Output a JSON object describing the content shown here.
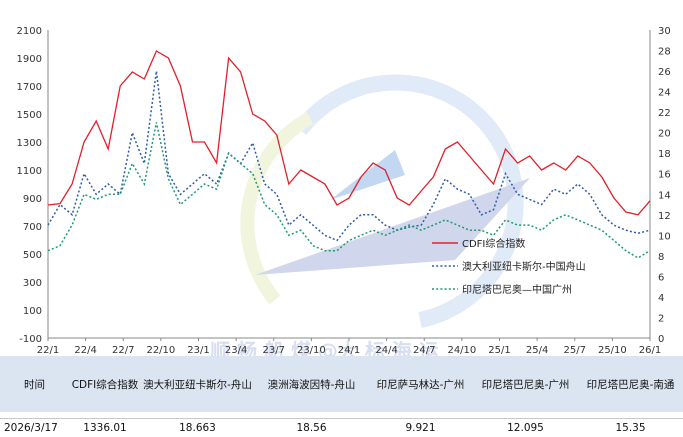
{
  "chart_data": {
    "type": "line",
    "title": "",
    "x_ticks": [
      "22/1",
      "22/4",
      "22/7",
      "22/10",
      "23/1",
      "23/4",
      "23/7",
      "23/10",
      "24/1",
      "24/4",
      "24/7",
      "24/10",
      "25/1",
      "25/4",
      "25/7",
      "25/10",
      "26/1"
    ],
    "y_left": {
      "min": -100,
      "max": 2100,
      "ticks": [
        -100,
        100,
        300,
        500,
        700,
        900,
        1100,
        1300,
        1500,
        1700,
        1900,
        2100
      ]
    },
    "y_right": {
      "min": 0,
      "max": 30,
      "ticks": [
        0,
        2,
        4,
        6,
        8,
        10,
        12,
        14,
        16,
        18,
        20,
        22,
        24,
        26,
        28,
        30
      ]
    },
    "grid": false,
    "legend_position": "lower-right",
    "series": [
      {
        "name": "CDFI综合指数",
        "axis": "left",
        "color": "#e0202a",
        "dash": "solid",
        "x": [
          "2022-01",
          "2022-02",
          "2022-03",
          "2022-04",
          "2022-05",
          "2022-06",
          "2022-07",
          "2022-08",
          "2022-09",
          "2022-10",
          "2022-11",
          "2022-12",
          "2023-01",
          "2023-02",
          "2023-03",
          "2023-04",
          "2023-05",
          "2023-06",
          "2023-07",
          "2023-08",
          "2023-09",
          "2023-10",
          "2023-11",
          "2023-12",
          "2024-01",
          "2024-02",
          "2024-03",
          "2024-04",
          "2024-05",
          "2024-06",
          "2024-07",
          "2024-08",
          "2024-09",
          "2024-10",
          "2024-11",
          "2024-12",
          "2025-01",
          "2025-02",
          "2025-03",
          "2025-04",
          "2025-05",
          "2025-06",
          "2025-07",
          "2025-08",
          "2025-09",
          "2025-10",
          "2025-11",
          "2025-12",
          "2026-01",
          "2026-02",
          "2026-03"
        ],
        "values": [
          850,
          860,
          1000,
          1300,
          1450,
          1250,
          1700,
          1800,
          1750,
          1950,
          1900,
          1700,
          1300,
          1300,
          1150,
          1900,
          1800,
          1500,
          1450,
          1350,
          1000,
          1100,
          1050,
          1000,
          850,
          900,
          1050,
          1150,
          1100,
          900,
          850,
          950,
          1050,
          1250,
          1300,
          1200,
          1100,
          1000,
          1250,
          1150,
          1200,
          1100,
          1150,
          1100,
          1200,
          1150,
          1050,
          900,
          800,
          780,
          880
        ]
      },
      {
        "name": "澳大利亚纽卡斯尔-中国舟山",
        "axis": "right",
        "color": "#2e5bab",
        "dash": "dotted",
        "x": [
          "2022-01",
          "2022-02",
          "2022-03",
          "2022-04",
          "2022-05",
          "2022-06",
          "2022-07",
          "2022-08",
          "2022-09",
          "2022-10",
          "2022-11",
          "2022-12",
          "2023-01",
          "2023-02",
          "2023-03",
          "2023-04",
          "2023-05",
          "2023-06",
          "2023-07",
          "2023-08",
          "2023-09",
          "2023-10",
          "2023-11",
          "2023-12",
          "2024-01",
          "2024-02",
          "2024-03",
          "2024-04",
          "2024-05",
          "2024-06",
          "2024-07",
          "2024-08",
          "2024-09",
          "2024-10",
          "2024-11",
          "2024-12",
          "2025-01",
          "2025-02",
          "2025-03",
          "2025-04",
          "2025-05",
          "2025-06",
          "2025-07",
          "2025-08",
          "2025-09",
          "2025-10",
          "2025-11",
          "2025-12",
          "2026-01",
          "2026-02",
          "2026-03"
        ],
        "values": [
          11,
          13,
          12,
          16,
          14,
          15,
          14,
          20,
          17,
          26,
          16,
          14,
          15,
          16,
          15,
          18,
          17,
          19,
          15,
          14,
          11,
          12,
          11,
          10,
          9.5,
          11,
          12,
          12,
          11,
          10.5,
          10.8,
          11,
          13,
          15.5,
          14.5,
          14,
          12,
          12.5,
          16,
          14,
          13.5,
          13,
          14.5,
          14,
          15,
          14,
          12,
          11,
          10.5,
          10.2,
          10.5
        ]
      },
      {
        "name": "印尼塔巴尼奥—中国广州",
        "axis": "right",
        "color": "#1e9a6e",
        "dash": "dotted",
        "x": [
          "2022-01",
          "2022-02",
          "2022-03",
          "2022-04",
          "2022-05",
          "2022-06",
          "2022-07",
          "2022-08",
          "2022-09",
          "2022-10",
          "2022-11",
          "2022-12",
          "2023-01",
          "2023-02",
          "2023-03",
          "2023-04",
          "2023-05",
          "2023-06",
          "2023-07",
          "2023-08",
          "2023-09",
          "2023-10",
          "2023-11",
          "2023-12",
          "2024-01",
          "2024-02",
          "2024-03",
          "2024-04",
          "2024-05",
          "2024-06",
          "2024-07",
          "2024-08",
          "2024-09",
          "2024-10",
          "2024-11",
          "2024-12",
          "2025-01",
          "2025-02",
          "2025-03",
          "2025-04",
          "2025-05",
          "2025-06",
          "2025-07",
          "2025-08",
          "2025-09",
          "2025-10",
          "2025-11",
          "2025-12",
          "2026-01",
          "2026-02",
          "2026-03"
        ],
        "values": [
          8.5,
          9,
          11,
          14,
          13.5,
          14,
          14,
          17,
          15,
          21,
          15.5,
          13,
          14,
          15,
          14.5,
          18,
          17,
          16,
          13,
          12,
          10,
          10.5,
          9,
          8.5,
          8.5,
          9.5,
          10,
          10.5,
          10,
          10.5,
          11,
          10.5,
          11,
          11.5,
          11,
          10.5,
          10.5,
          10,
          11.5,
          11,
          11,
          10.5,
          11.5,
          12,
          11.5,
          11,
          10.5,
          9.5,
          8.5,
          7.8,
          8.5
        ]
      }
    ]
  },
  "watermark": "顺  畅  船  煤  @大  标  海  运",
  "table": {
    "headers": [
      "时间",
      "CDFI综合指数",
      "澳大利亚纽卡斯尔-舟山",
      "澳洲海波因特-舟山",
      "印尼萨马林达-广州",
      "印尼塔巴尼奥-广州",
      "印尼塔巴尼奥-南通"
    ],
    "row": [
      "2026/3/17",
      "1336.01",
      "18.663",
      "18.56",
      "9.921",
      "12.095",
      "15.35"
    ]
  }
}
